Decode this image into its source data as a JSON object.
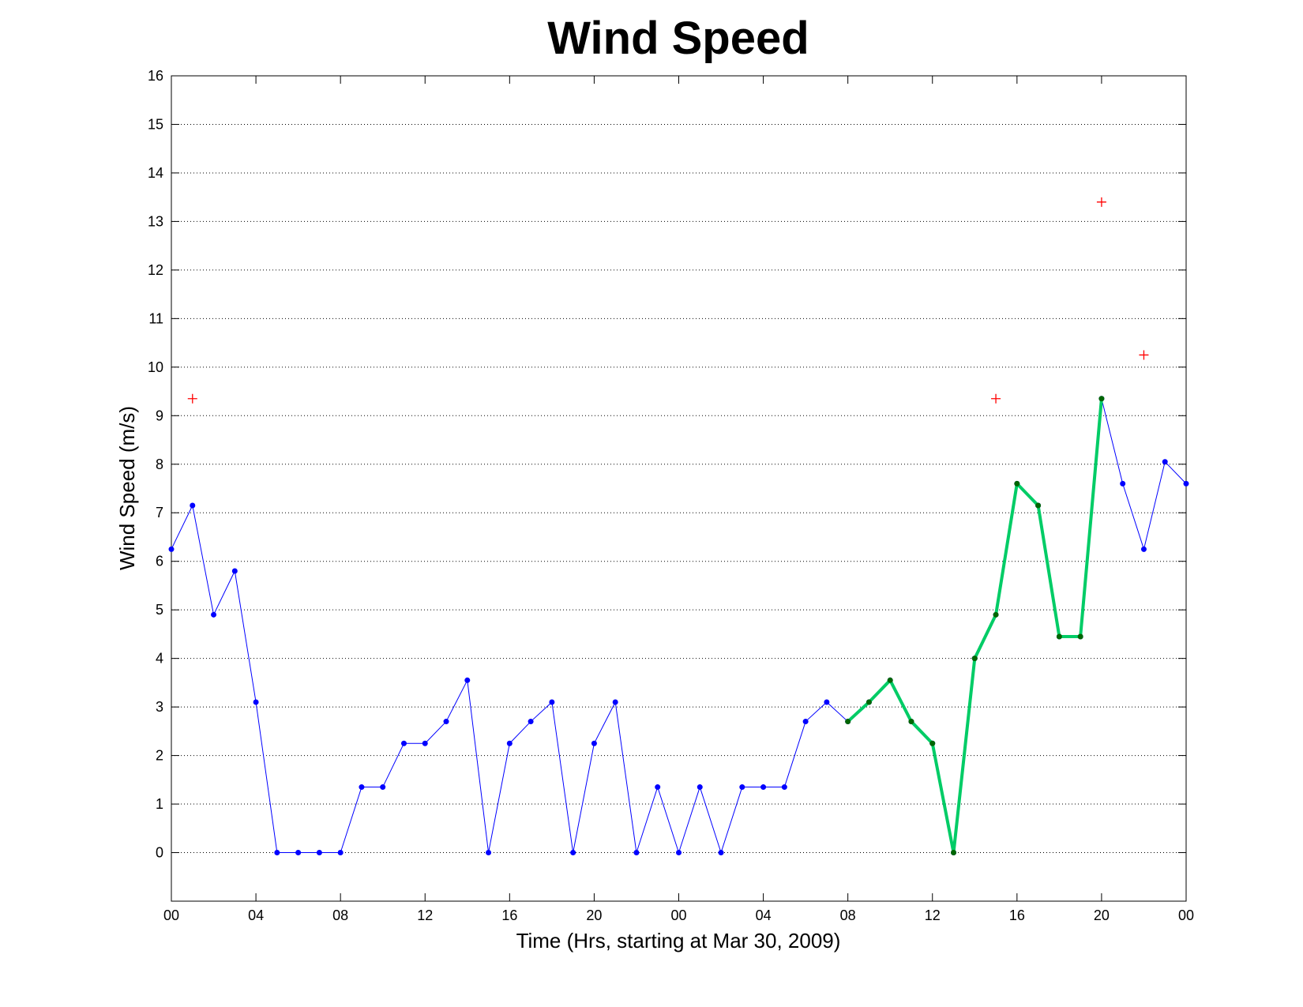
{
  "chart_data": {
    "type": "line",
    "title": "Wind Speed",
    "x_label": "Time (Hrs, starting at Mar 30, 2009)",
    "y_label": "Wind Speed (m/s)",
    "x": [
      0,
      1,
      2,
      3,
      4,
      5,
      6,
      7,
      8,
      9,
      10,
      11,
      12,
      13,
      14,
      15,
      16,
      17,
      18,
      19,
      20,
      21,
      22,
      23,
      24,
      25,
      26,
      27,
      28,
      29,
      30,
      31,
      32,
      33,
      34,
      35,
      36,
      37,
      38,
      39,
      40,
      41,
      42,
      43,
      44,
      45,
      46,
      47,
      48
    ],
    "series": [
      {
        "color": "#0000ff",
        "line_width": 1,
        "marker": "dot",
        "marker_color": "#0000ff",
        "values": [
          6.25,
          7.15,
          4.9,
          5.8,
          3.1,
          0,
          0,
          0,
          0,
          1.35,
          1.35,
          2.25,
          2.25,
          2.7,
          3.55,
          0,
          2.25,
          2.7,
          3.1,
          0,
          2.25,
          3.1,
          0,
          1.35,
          0,
          1.35,
          0,
          1.35,
          1.35,
          1.35,
          2.7,
          3.1,
          2.7,
          3.1,
          3.55,
          2.7,
          2.25,
          0,
          4.0,
          4.9,
          7.6,
          7.15,
          4.45,
          4.45,
          9.35,
          7.6,
          6.25,
          8.05,
          7.6
        ]
      },
      {
        "color": "#00cc66",
        "line_width": 4,
        "marker": "dot",
        "marker_color": "#006600",
        "values": [
          null,
          null,
          null,
          null,
          null,
          null,
          null,
          null,
          null,
          null,
          null,
          null,
          null,
          null,
          null,
          null,
          null,
          null,
          null,
          null,
          null,
          null,
          null,
          null,
          null,
          null,
          null,
          null,
          null,
          null,
          null,
          null,
          2.7,
          3.1,
          3.55,
          2.7,
          2.25,
          0,
          4.0,
          4.9,
          7.6,
          7.15,
          4.45,
          4.45,
          9.35,
          null,
          null,
          null,
          null
        ]
      },
      {
        "color": "#ff0000",
        "line_width": 0,
        "marker": "plus",
        "marker_color": "#ff0000",
        "values": [
          null,
          9.35,
          null,
          null,
          null,
          null,
          null,
          null,
          null,
          null,
          null,
          null,
          null,
          null,
          null,
          null,
          null,
          null,
          null,
          null,
          null,
          null,
          null,
          null,
          null,
          null,
          null,
          null,
          null,
          null,
          null,
          null,
          null,
          null,
          null,
          null,
          null,
          null,
          null,
          9.35,
          null,
          null,
          null,
          null,
          13.4,
          null,
          10.25,
          null,
          null
        ]
      }
    ],
    "xlim": [
      0,
      48
    ],
    "xticks": [
      {
        "value": 0,
        "label": "00"
      },
      {
        "value": 4,
        "label": "04"
      },
      {
        "value": 8,
        "label": "08"
      },
      12,
      16,
      20,
      {
        "value": 24,
        "label": "00"
      },
      {
        "value": 28,
        "label": "04"
      },
      {
        "value": 32,
        "label": "08"
      },
      {
        "value": 36,
        "label": "12"
      },
      {
        "value": 40,
        "label": "16"
      },
      {
        "value": 44,
        "label": "20"
      },
      {
        "value": 48,
        "label": "00"
      }
    ],
    "ylim": [
      -1,
      16
    ],
    "yticks": [
      0,
      1,
      2,
      3,
      4,
      5,
      6,
      7,
      8,
      9,
      10,
      11,
      12,
      13,
      14,
      15,
      16
    ],
    "grid": "y"
  }
}
